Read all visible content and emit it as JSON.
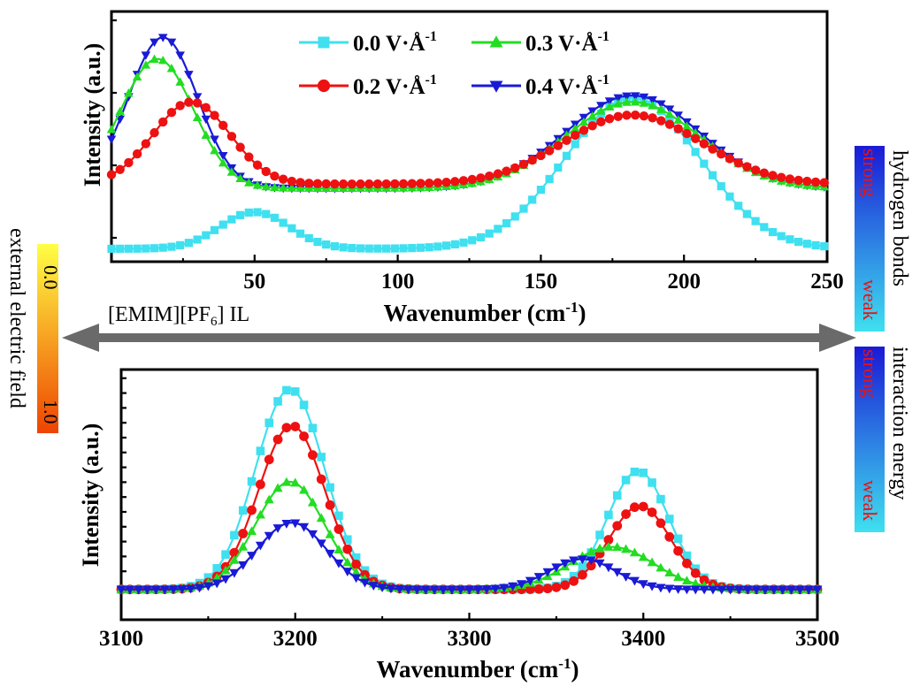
{
  "colors": {
    "s00": "#3fe0f0",
    "s02": "#ee1111",
    "s03": "#22dd22",
    "s04": "#1a1ad6",
    "arrow": "#6a6a6a",
    "efield_top": "#ffff44",
    "efield_bottom": "#ee4400",
    "bar_top": "#1a1ad6",
    "bar_bottom": "#3fe0f0"
  },
  "chart_data": [
    {
      "type": "line",
      "xlabel": "Wavenumber (cm",
      "xlabel_sup": "-1",
      "xlabel_end": ")",
      "ylabel": "Intensity (a.u.)",
      "xlim": [
        0,
        250
      ],
      "ylim": [
        0,
        1
      ],
      "xticks": [
        "50",
        "100",
        "150",
        "200",
        "250"
      ],
      "xtick_values": [
        50,
        100,
        150,
        200,
        250
      ],
      "yticks_count": 4,
      "grid": false,
      "legend_position": "top-center",
      "marker_step": 3,
      "series": [
        {
          "name": "0.0 V·Å",
          "sup": "-1",
          "marker": "square",
          "color_key": "s00",
          "peaks": [
            [
              0.17,
              50,
              17
            ],
            [
              0.7,
              182,
              33
            ]
          ],
          "base": -0.08
        },
        {
          "name": "0.2 V·Å",
          "sup": "-1",
          "marker": "circle",
          "color_key": "s02",
          "peaks": [
            [
              0.38,
              28,
              19
            ],
            [
              0.32,
              182,
              34
            ]
          ],
          "base": 0.22
        },
        {
          "name": "0.3 V·Å",
          "sup": "-1",
          "marker": "triangle-up",
          "color_key": "s03",
          "peaks": [
            [
              0.6,
              16,
              18
            ],
            [
              0.4,
              182,
              33
            ]
          ],
          "base": 0.2
        },
        {
          "name": "0.4 V·Å",
          "sup": "-1",
          "marker": "triangle-down",
          "color_key": "s04",
          "peaks": [
            [
              0.7,
              18,
              17
            ],
            [
              0.43,
              182,
              33
            ]
          ],
          "base": 0.2
        }
      ]
    },
    {
      "type": "line",
      "xlabel": "Wavenumber (cm",
      "xlabel_sup": "-1",
      "xlabel_end": ")",
      "ylabel": "Intensity (a.u.)",
      "xlim": [
        3100,
        3500
      ],
      "ylim": [
        -0.2,
        1.45
      ],
      "xticks": [
        "3100",
        "3200",
        "3300",
        "3400",
        "3500"
      ],
      "xtick_values": [
        3100,
        3200,
        3300,
        3400,
        3500
      ],
      "yticks_count": 15,
      "grid": false,
      "marker_step": 5,
      "series": [
        {
          "name": "0.0 V·Å",
          "marker": "square",
          "color_key": "s00",
          "peaks": [
            [
              1.32,
              3197,
              28
            ],
            [
              0.78,
              3397,
              25
            ]
          ],
          "base": 0
        },
        {
          "name": "0.2 V·Å",
          "marker": "circle",
          "color_key": "s02",
          "peaks": [
            [
              1.08,
              3198,
              27
            ],
            [
              0.55,
              3398,
              25
            ]
          ],
          "base": 0
        },
        {
          "name": "0.3 V·Å",
          "marker": "triangle-up",
          "color_key": "s03",
          "peaks": [
            [
              0.71,
              3197,
              28
            ],
            [
              0.28,
              3382,
              34
            ]
          ],
          "base": 0
        },
        {
          "name": "0.4 V·Å",
          "marker": "triangle-down",
          "color_key": "s04",
          "peaks": [
            [
              0.44,
              3198,
              28
            ],
            [
              0.2,
              3365,
              27
            ]
          ],
          "base": 0
        }
      ]
    }
  ],
  "annotations": {
    "il_label": "[EMIM][PF",
    "il_sub": "6",
    "il_end": "] IL",
    "efield": {
      "title": "external electric field",
      "top_value": "0.0",
      "bottom_value": "1.0"
    },
    "hbond": {
      "title": "hydrogen bonds",
      "strong": "strong",
      "weak": "weak"
    },
    "ienergy": {
      "title": "interaction energy",
      "strong": "strong",
      "weak": "weak"
    }
  }
}
